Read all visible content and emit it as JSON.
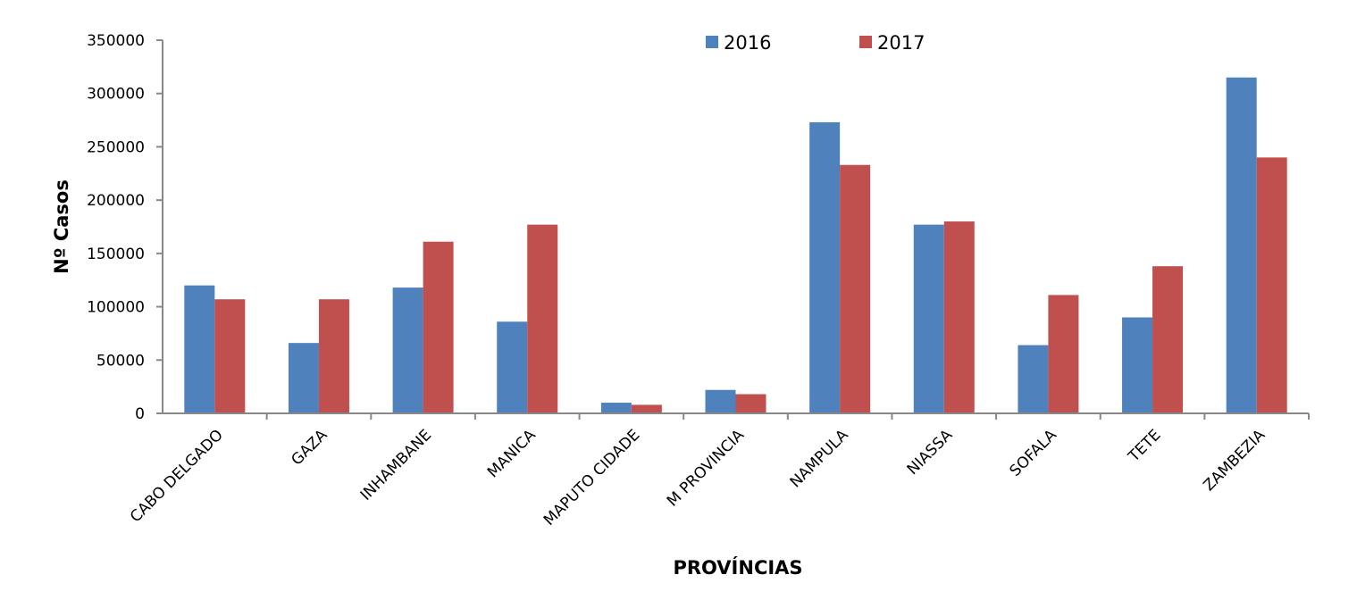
{
  "chart_data": {
    "type": "bar",
    "x_label": "PROVÍNCIAS",
    "y_label": "Nº Casos",
    "categories": [
      "CABO DELGADO",
      "GAZA",
      "INHAMBANE",
      "MANICA",
      "MAPUTO CIDADE",
      "M PROVINCIA",
      "NAMPULA",
      "NIASSA",
      "SOFALA",
      "TETE",
      "ZAMBEZIA"
    ],
    "series": [
      {
        "name": "2016",
        "color": "#4f81bd",
        "values": [
          120000,
          66000,
          118000,
          86000,
          10000,
          22000,
          273000,
          177000,
          64000,
          90000,
          315000
        ]
      },
      {
        "name": "2017",
        "color": "#c0504d",
        "values": [
          107000,
          107000,
          161000,
          177000,
          8000,
          18000,
          233000,
          180000,
          111000,
          138000,
          240000
        ]
      }
    ],
    "ylim": [
      0,
      350000
    ],
    "yticks": [
      0,
      50000,
      100000,
      150000,
      200000,
      250000,
      300000,
      350000
    ],
    "grid": false,
    "legend": "top"
  }
}
